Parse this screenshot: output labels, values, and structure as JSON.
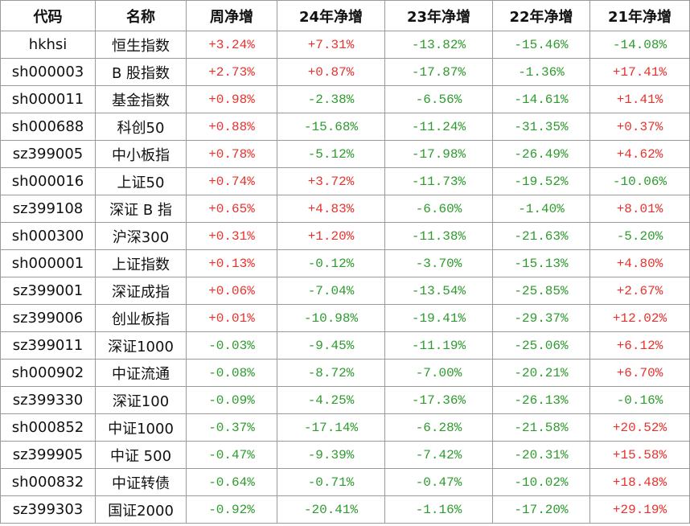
{
  "table": {
    "header": [
      "代码",
      "名称",
      "周净增",
      "24年净增",
      "23年净增",
      "22年净增",
      "21年净增"
    ],
    "rows": [
      [
        "hkhsi",
        "恒生指数",
        "+3.24%",
        "+7.31%",
        "-13.82%",
        "-15.46%",
        "-14.08%"
      ],
      [
        "sh000003",
        "B 股指数",
        "+2.73%",
        "+0.87%",
        "-17.87%",
        "-1.36%",
        "+17.41%"
      ],
      [
        "sh000011",
        "基金指数",
        "+0.98%",
        "-2.38%",
        "-6.56%",
        "-14.61%",
        "+1.41%"
      ],
      [
        "sh000688",
        "科创50",
        "+0.88%",
        "-15.68%",
        "-11.24%",
        "-31.35%",
        "+0.37%"
      ],
      [
        "sz399005",
        "中小板指",
        "+0.78%",
        "-5.12%",
        "-17.98%",
        "-26.49%",
        "+4.62%"
      ],
      [
        "sh000016",
        "上证50",
        "+0.74%",
        "+3.72%",
        "-11.73%",
        "-19.52%",
        "-10.06%"
      ],
      [
        "sz399108",
        "深证 B 指",
        "+0.65%",
        "+4.83%",
        "-6.60%",
        "-1.40%",
        "+8.01%"
      ],
      [
        "sh000300",
        "沪深300",
        "+0.31%",
        "+1.20%",
        "-11.38%",
        "-21.63%",
        "-5.20%"
      ],
      [
        "sh000001",
        "上证指数",
        "+0.13%",
        "-0.12%",
        "-3.70%",
        "-15.13%",
        "+4.80%"
      ],
      [
        "sz399001",
        "深证成指",
        "+0.06%",
        "-7.04%",
        "-13.54%",
        "-25.85%",
        "+2.67%"
      ],
      [
        "sz399006",
        "创业板指",
        "+0.01%",
        "-10.98%",
        "-19.41%",
        "-29.37%",
        "+12.02%"
      ],
      [
        "sz399011",
        "深证1000",
        "-0.03%",
        "-9.45%",
        "-11.19%",
        "-25.06%",
        "+6.12%"
      ],
      [
        "sh000902",
        "中证流通",
        "-0.08%",
        "-8.72%",
        "-7.00%",
        "-20.21%",
        "+6.70%"
      ],
      [
        "sz399330",
        "深证100",
        "-0.09%",
        "-4.25%",
        "-17.36%",
        "-26.13%",
        "-0.16%"
      ],
      [
        "sh000852",
        "中证1000",
        "-0.37%",
        "-17.14%",
        "-6.28%",
        "-21.58%",
        "+20.52%"
      ],
      [
        "sz399905",
        "中证 500",
        "-0.47%",
        "-9.39%",
        "-7.42%",
        "-20.31%",
        "+15.58%"
      ],
      [
        "sh000832",
        "中证转债",
        "-0.64%",
        "-0.71%",
        "-0.47%",
        "-10.02%",
        "+18.48%"
      ],
      [
        "sz399303",
        "国证2000",
        "-0.92%",
        "-20.41%",
        "-1.16%",
        "-17.20%",
        "+29.19%"
      ]
    ]
  }
}
